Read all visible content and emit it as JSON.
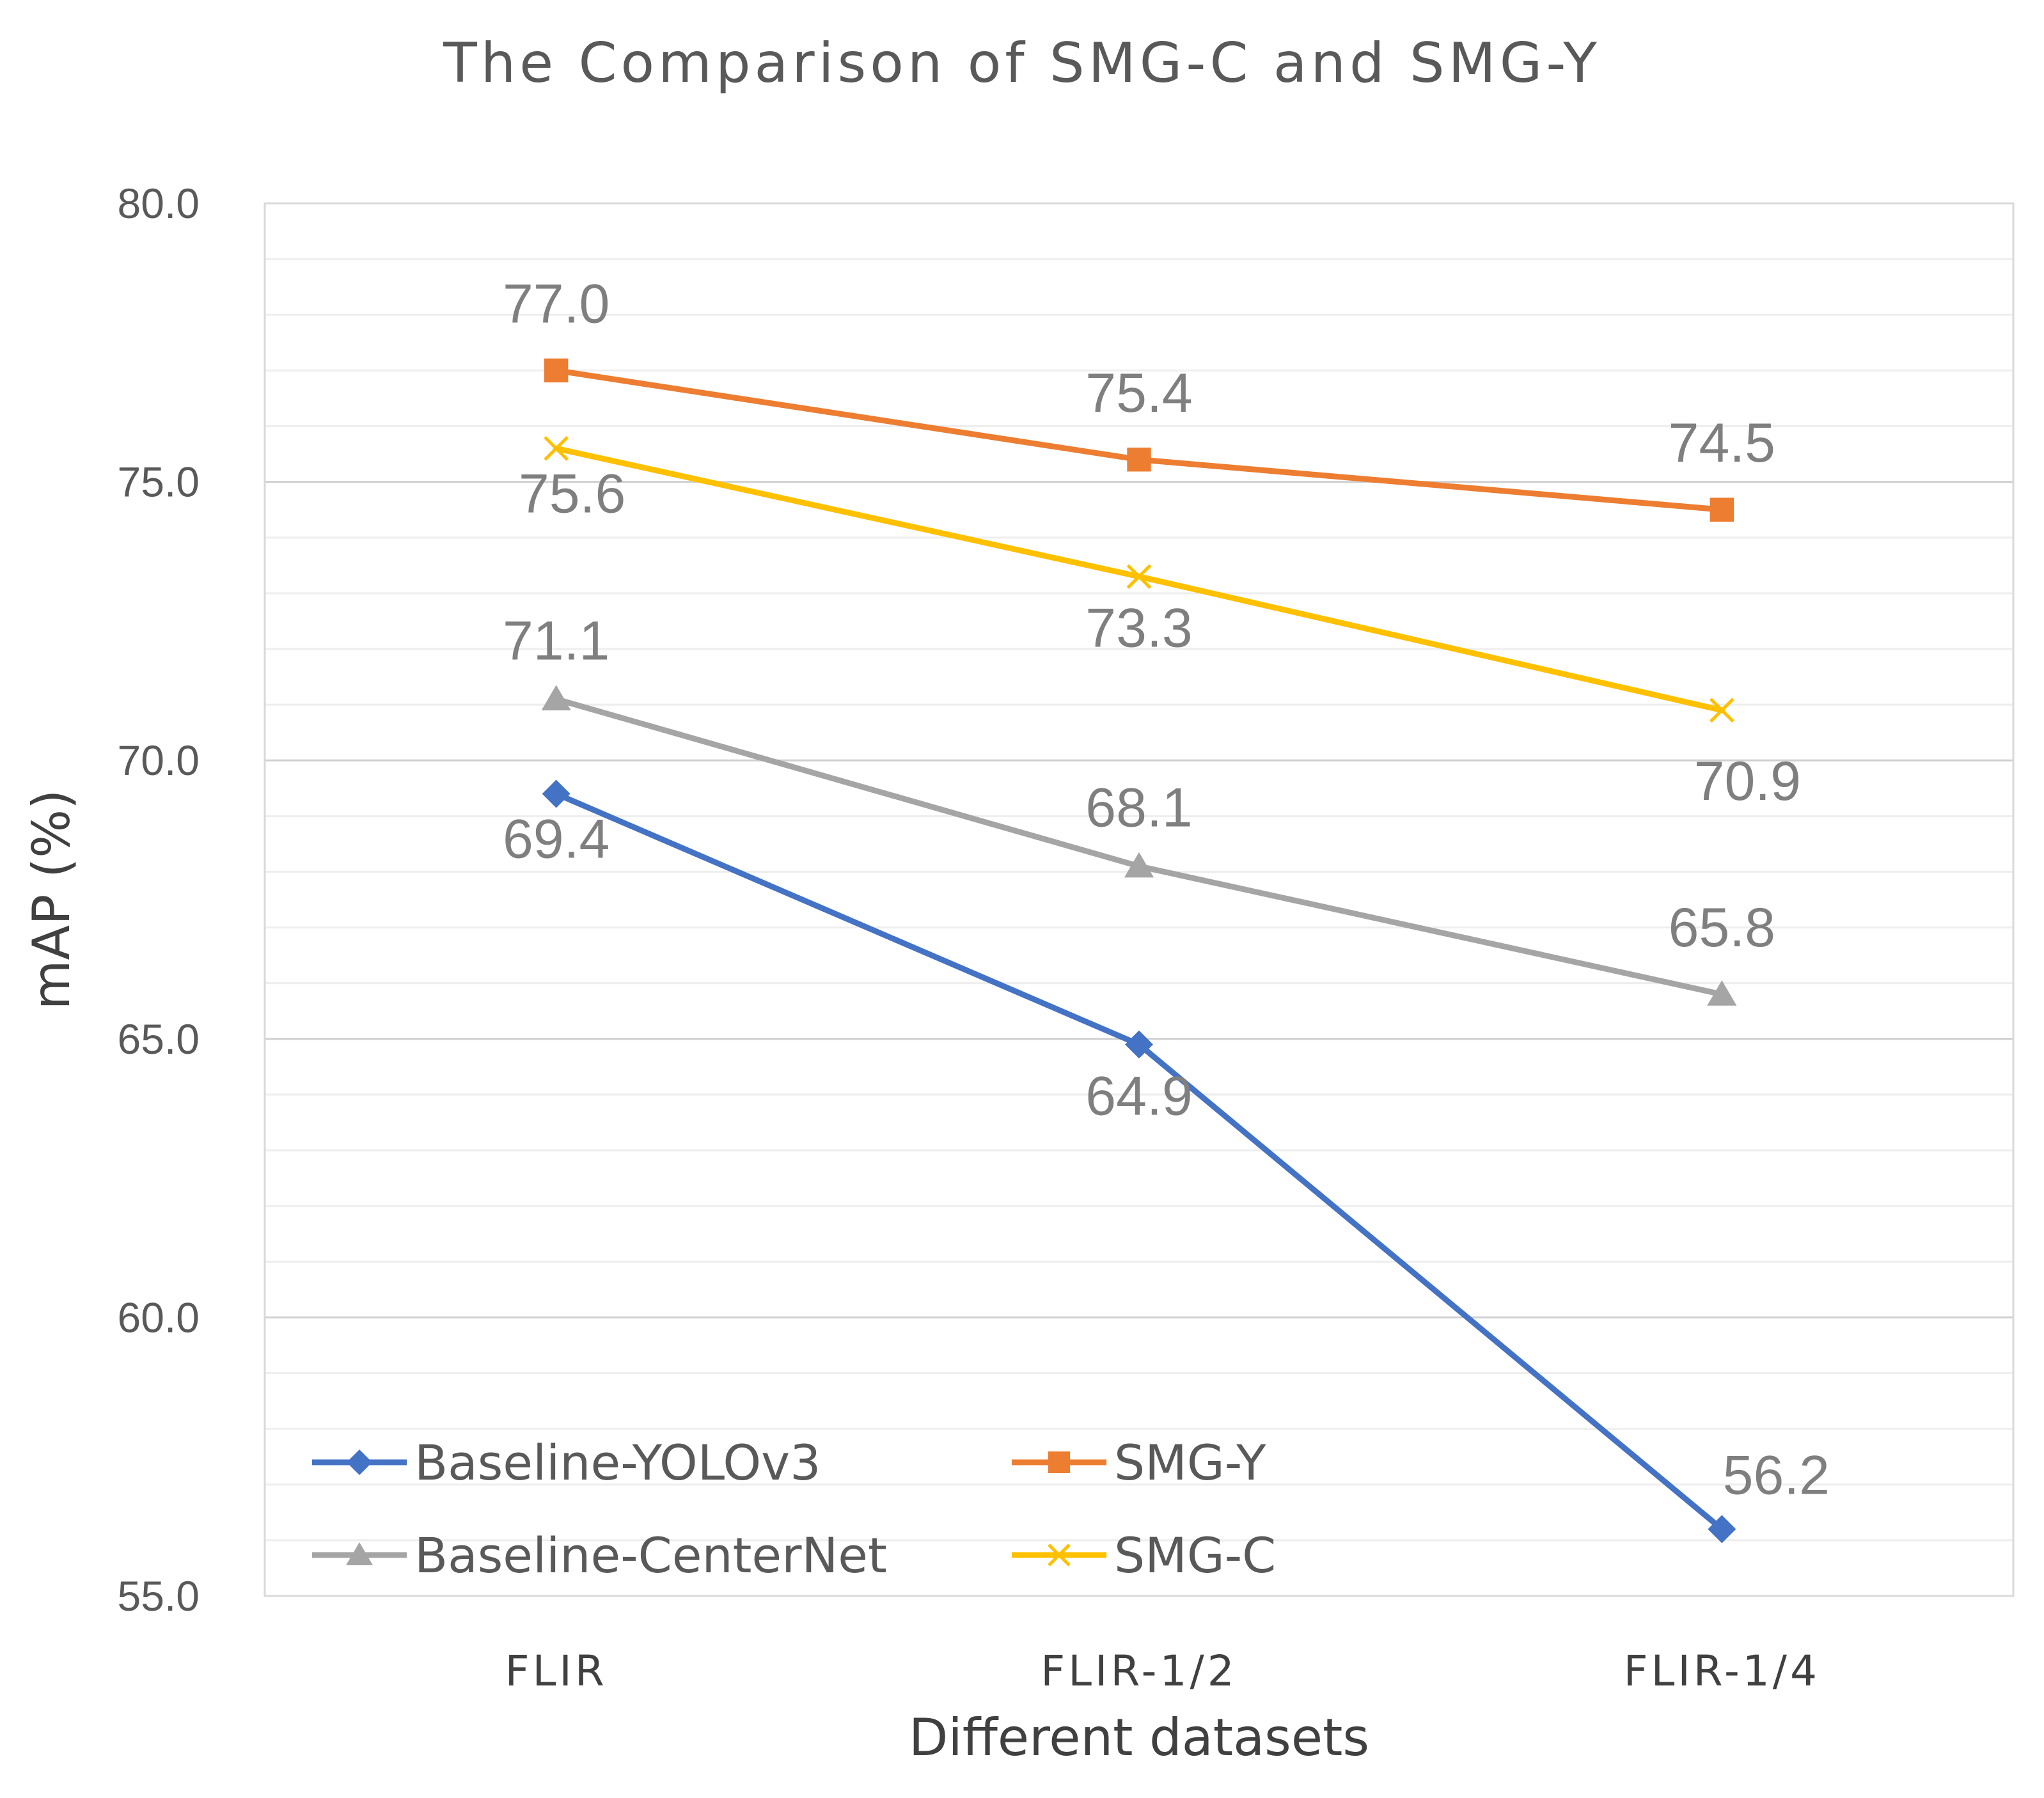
{
  "chart_data": {
    "type": "line",
    "title": "The Comparison of SMG-C and SMG-Y",
    "xlabel": "Different datasets",
    "ylabel": "mAP (%)",
    "categories": [
      "FLIR",
      "FLIR-1/2",
      "FLIR-1/4"
    ],
    "ylim": [
      55.0,
      80.0
    ],
    "yticks": [
      "55.0",
      "60.0",
      "65.0",
      "70.0",
      "75.0",
      "80.0"
    ],
    "grid": true,
    "legend_position": "bottom-left inside plot",
    "series": [
      {
        "name": "Baseline-YOLOv3",
        "values": [
          69.4,
          64.9,
          56.2
        ],
        "labels": [
          "69.4",
          "64.9",
          "56.2"
        ],
        "color": "#4472C4",
        "marker": "diamond"
      },
      {
        "name": "SMG-Y",
        "values": [
          77.0,
          75.4,
          74.5
        ],
        "labels": [
          "77.0",
          "75.4",
          "74.5"
        ],
        "color": "#ED7D31",
        "marker": "square"
      },
      {
        "name": "Baseline-CenterNet",
        "values": [
          71.1,
          68.1,
          65.8
        ],
        "labels": [
          "71.1",
          "68.1",
          "65.8"
        ],
        "color": "#A5A5A5",
        "marker": "triangle"
      },
      {
        "name": "SMG-C",
        "values": [
          75.6,
          73.3,
          70.9
        ],
        "labels": [
          "75.6",
          "73.3",
          "70.9"
        ],
        "color": "#FFC000",
        "marker": "x"
      }
    ]
  }
}
